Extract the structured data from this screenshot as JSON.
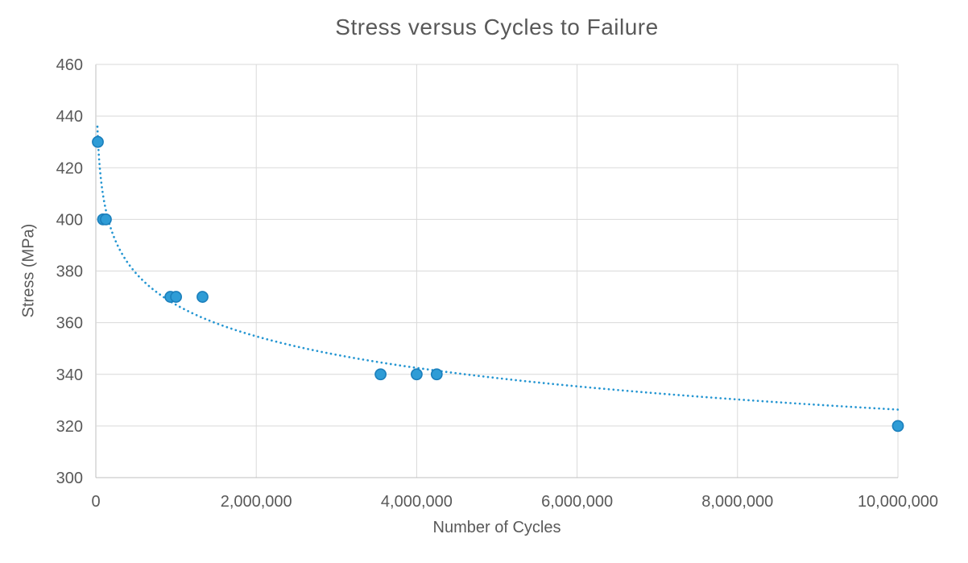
{
  "title": "Stress versus Cycles to Failure",
  "x_axis": {
    "label": "Number of Cycles"
  },
  "y_axis": {
    "label": "Stress (MPa)"
  },
  "colors": {
    "marker_fill": "#2E9CD6",
    "marker_stroke": "#1B7FBC",
    "trendline": "#2596D2",
    "gridline": "#D9D9D9",
    "axis_line": "#BFBFBF",
    "text": "#595959",
    "tick_text": "#595959",
    "background": "#FFFFFF"
  },
  "chart_data": {
    "type": "scatter",
    "title": "Stress versus Cycles to Failure",
    "xlabel": "Number of Cycles",
    "ylabel": "Stress (MPa)",
    "xlim": [
      0,
      10000000
    ],
    "ylim": [
      300,
      460
    ],
    "grid": true,
    "legend": false,
    "x_ticks": {
      "values": [
        0,
        2000000,
        4000000,
        6000000,
        8000000,
        10000000
      ],
      "labels": [
        "0",
        "2,000,000",
        "4,000,000",
        "6,000,000",
        "8,000,000",
        "10,000,000"
      ]
    },
    "y_ticks": {
      "values": [
        300,
        320,
        340,
        360,
        380,
        400,
        420,
        440,
        460
      ],
      "labels": [
        "300",
        "320",
        "340",
        "360",
        "380",
        "400",
        "420",
        "440",
        "460"
      ]
    },
    "points": [
      {
        "cycles": 25000,
        "stress": 430
      },
      {
        "cycles": 90000,
        "stress": 400
      },
      {
        "cycles": 125000,
        "stress": 400
      },
      {
        "cycles": 930000,
        "stress": 370
      },
      {
        "cycles": 1000000,
        "stress": 370
      },
      {
        "cycles": 1330000,
        "stress": 370
      },
      {
        "cycles": 3550000,
        "stress": 340
      },
      {
        "cycles": 4000000,
        "stress": 340
      },
      {
        "cycles": 4250000,
        "stress": 340
      },
      {
        "cycles": 10000000,
        "stress": 320
      }
    ],
    "trendline": {
      "fit": "logarithmic",
      "formula": "S = 610.5 - 17.63*ln(N)",
      "a": 610.5,
      "b": 17.63,
      "x_start": 20000,
      "x_end": 10000000,
      "style": "dotted"
    }
  }
}
